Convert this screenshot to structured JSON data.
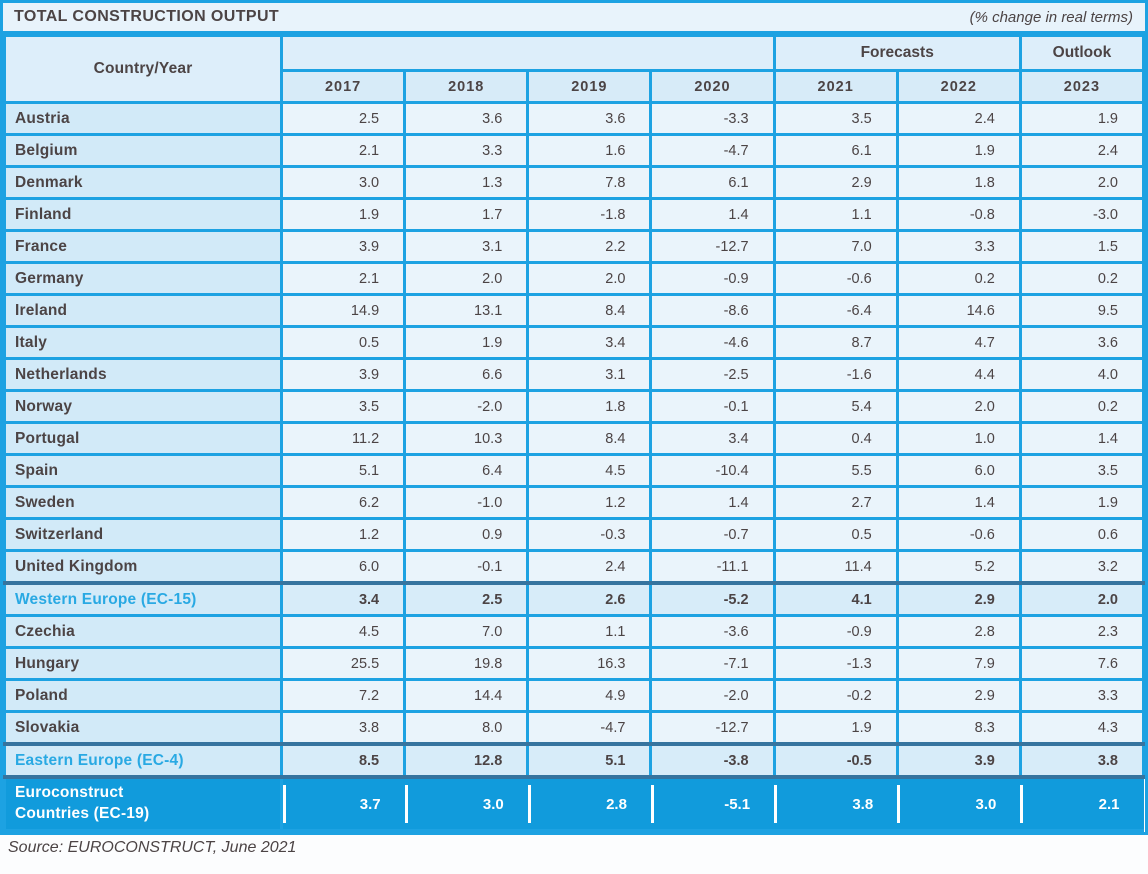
{
  "title": "TOTAL CONSTRUCTION OUTPUT",
  "unit_note": "(% change in real terms)",
  "source": "Source: EUROCONSTRUCT, June 2021",
  "header": {
    "country_year": "Country/Year",
    "forecasts": "Forecasts",
    "outlook": "Outlook"
  },
  "colors": {
    "grid_blue": "#1da2e2",
    "total_row_blue": "#119bdc",
    "subtotal_separator_blue": "#36749f",
    "accent_text_blue": "#29a9e3",
    "dark_text": "#4c4445"
  },
  "chart_data": {
    "type": "table",
    "title": "TOTAL CONSTRUCTION OUTPUT",
    "unit": "% change in real terms",
    "columns": [
      "Country/Year",
      "2017",
      "2018",
      "2019",
      "2020",
      "2021",
      "2022",
      "2023"
    ],
    "column_groups": [
      {
        "label": "Forecasts",
        "columns": [
          "2021",
          "2022"
        ]
      },
      {
        "label": "Outlook",
        "columns": [
          "2023"
        ]
      }
    ],
    "rows": [
      {
        "label": "Austria",
        "values": [
          "2.5",
          "3.6",
          "3.6",
          "-3.3",
          "3.5",
          "2.4",
          "1.9"
        ],
        "style": "normal"
      },
      {
        "label": "Belgium",
        "values": [
          "2.1",
          "3.3",
          "1.6",
          "-4.7",
          "6.1",
          "1.9",
          "2.4"
        ],
        "style": "normal"
      },
      {
        "label": "Denmark",
        "values": [
          "3.0",
          "1.3",
          "7.8",
          "6.1",
          "2.9",
          "1.8",
          "2.0"
        ],
        "style": "normal"
      },
      {
        "label": "Finland",
        "values": [
          "1.9",
          "1.7",
          "-1.8",
          "1.4",
          "1.1",
          "-0.8",
          "-3.0"
        ],
        "style": "normal"
      },
      {
        "label": "France",
        "values": [
          "3.9",
          "3.1",
          "2.2",
          "-12.7",
          "7.0",
          "3.3",
          "1.5"
        ],
        "style": "normal"
      },
      {
        "label": "Germany",
        "values": [
          "2.1",
          "2.0",
          "2.0",
          "-0.9",
          "-0.6",
          "0.2",
          "0.2"
        ],
        "style": "normal"
      },
      {
        "label": "Ireland",
        "values": [
          "14.9",
          "13.1",
          "8.4",
          "-8.6",
          "-6.4",
          "14.6",
          "9.5"
        ],
        "style": "normal"
      },
      {
        "label": "Italy",
        "values": [
          "0.5",
          "1.9",
          "3.4",
          "-4.6",
          "8.7",
          "4.7",
          "3.6"
        ],
        "style": "normal"
      },
      {
        "label": "Netherlands",
        "values": [
          "3.9",
          "6.6",
          "3.1",
          "-2.5",
          "-1.6",
          "4.4",
          "4.0"
        ],
        "style": "normal"
      },
      {
        "label": "Norway",
        "values": [
          "3.5",
          "-2.0",
          "1.8",
          "-0.1",
          "5.4",
          "2.0",
          "0.2"
        ],
        "style": "normal"
      },
      {
        "label": "Portugal",
        "values": [
          "11.2",
          "10.3",
          "8.4",
          "3.4",
          "0.4",
          "1.0",
          "1.4"
        ],
        "style": "normal"
      },
      {
        "label": "Spain",
        "values": [
          "5.1",
          "6.4",
          "4.5",
          "-10.4",
          "5.5",
          "6.0",
          "3.5"
        ],
        "style": "normal"
      },
      {
        "label": "Sweden",
        "values": [
          "6.2",
          "-1.0",
          "1.2",
          "1.4",
          "2.7",
          "1.4",
          "1.9"
        ],
        "style": "normal"
      },
      {
        "label": "Switzerland",
        "values": [
          "1.2",
          "0.9",
          "-0.3",
          "-0.7",
          "0.5",
          "-0.6",
          "0.6"
        ],
        "style": "normal"
      },
      {
        "label": "United Kingdom",
        "values": [
          "6.0",
          "-0.1",
          "2.4",
          "-11.1",
          "11.4",
          "5.2",
          "3.2"
        ],
        "style": "normal"
      },
      {
        "label": "Western Europe (EC-15)",
        "values": [
          "3.4",
          "2.5",
          "2.6",
          "-5.2",
          "4.1",
          "2.9",
          "2.0"
        ],
        "style": "subtotal"
      },
      {
        "label": "Czechia",
        "values": [
          "4.5",
          "7.0",
          "1.1",
          "-3.6",
          "-0.9",
          "2.8",
          "2.3"
        ],
        "style": "normal"
      },
      {
        "label": "Hungary",
        "values": [
          "25.5",
          "19.8",
          "16.3",
          "-7.1",
          "-1.3",
          "7.9",
          "7.6"
        ],
        "style": "normal"
      },
      {
        "label": "Poland",
        "values": [
          "7.2",
          "14.4",
          "4.9",
          "-2.0",
          "-0.2",
          "2.9",
          "3.3"
        ],
        "style": "normal"
      },
      {
        "label": "Slovakia",
        "values": [
          "3.8",
          "8.0",
          "-4.7",
          "-12.7",
          "1.9",
          "8.3",
          "4.3"
        ],
        "style": "normal"
      },
      {
        "label": "Eastern Europe (EC-4)",
        "values": [
          "8.5",
          "12.8",
          "5.1",
          "-3.8",
          "-0.5",
          "3.9",
          "3.8"
        ],
        "style": "subtotal"
      },
      {
        "label": "Euroconstruct Countries (EC-19)",
        "values": [
          "3.7",
          "3.0",
          "2.8",
          "-5.1",
          "3.8",
          "3.0",
          "2.1"
        ],
        "style": "total"
      }
    ]
  }
}
